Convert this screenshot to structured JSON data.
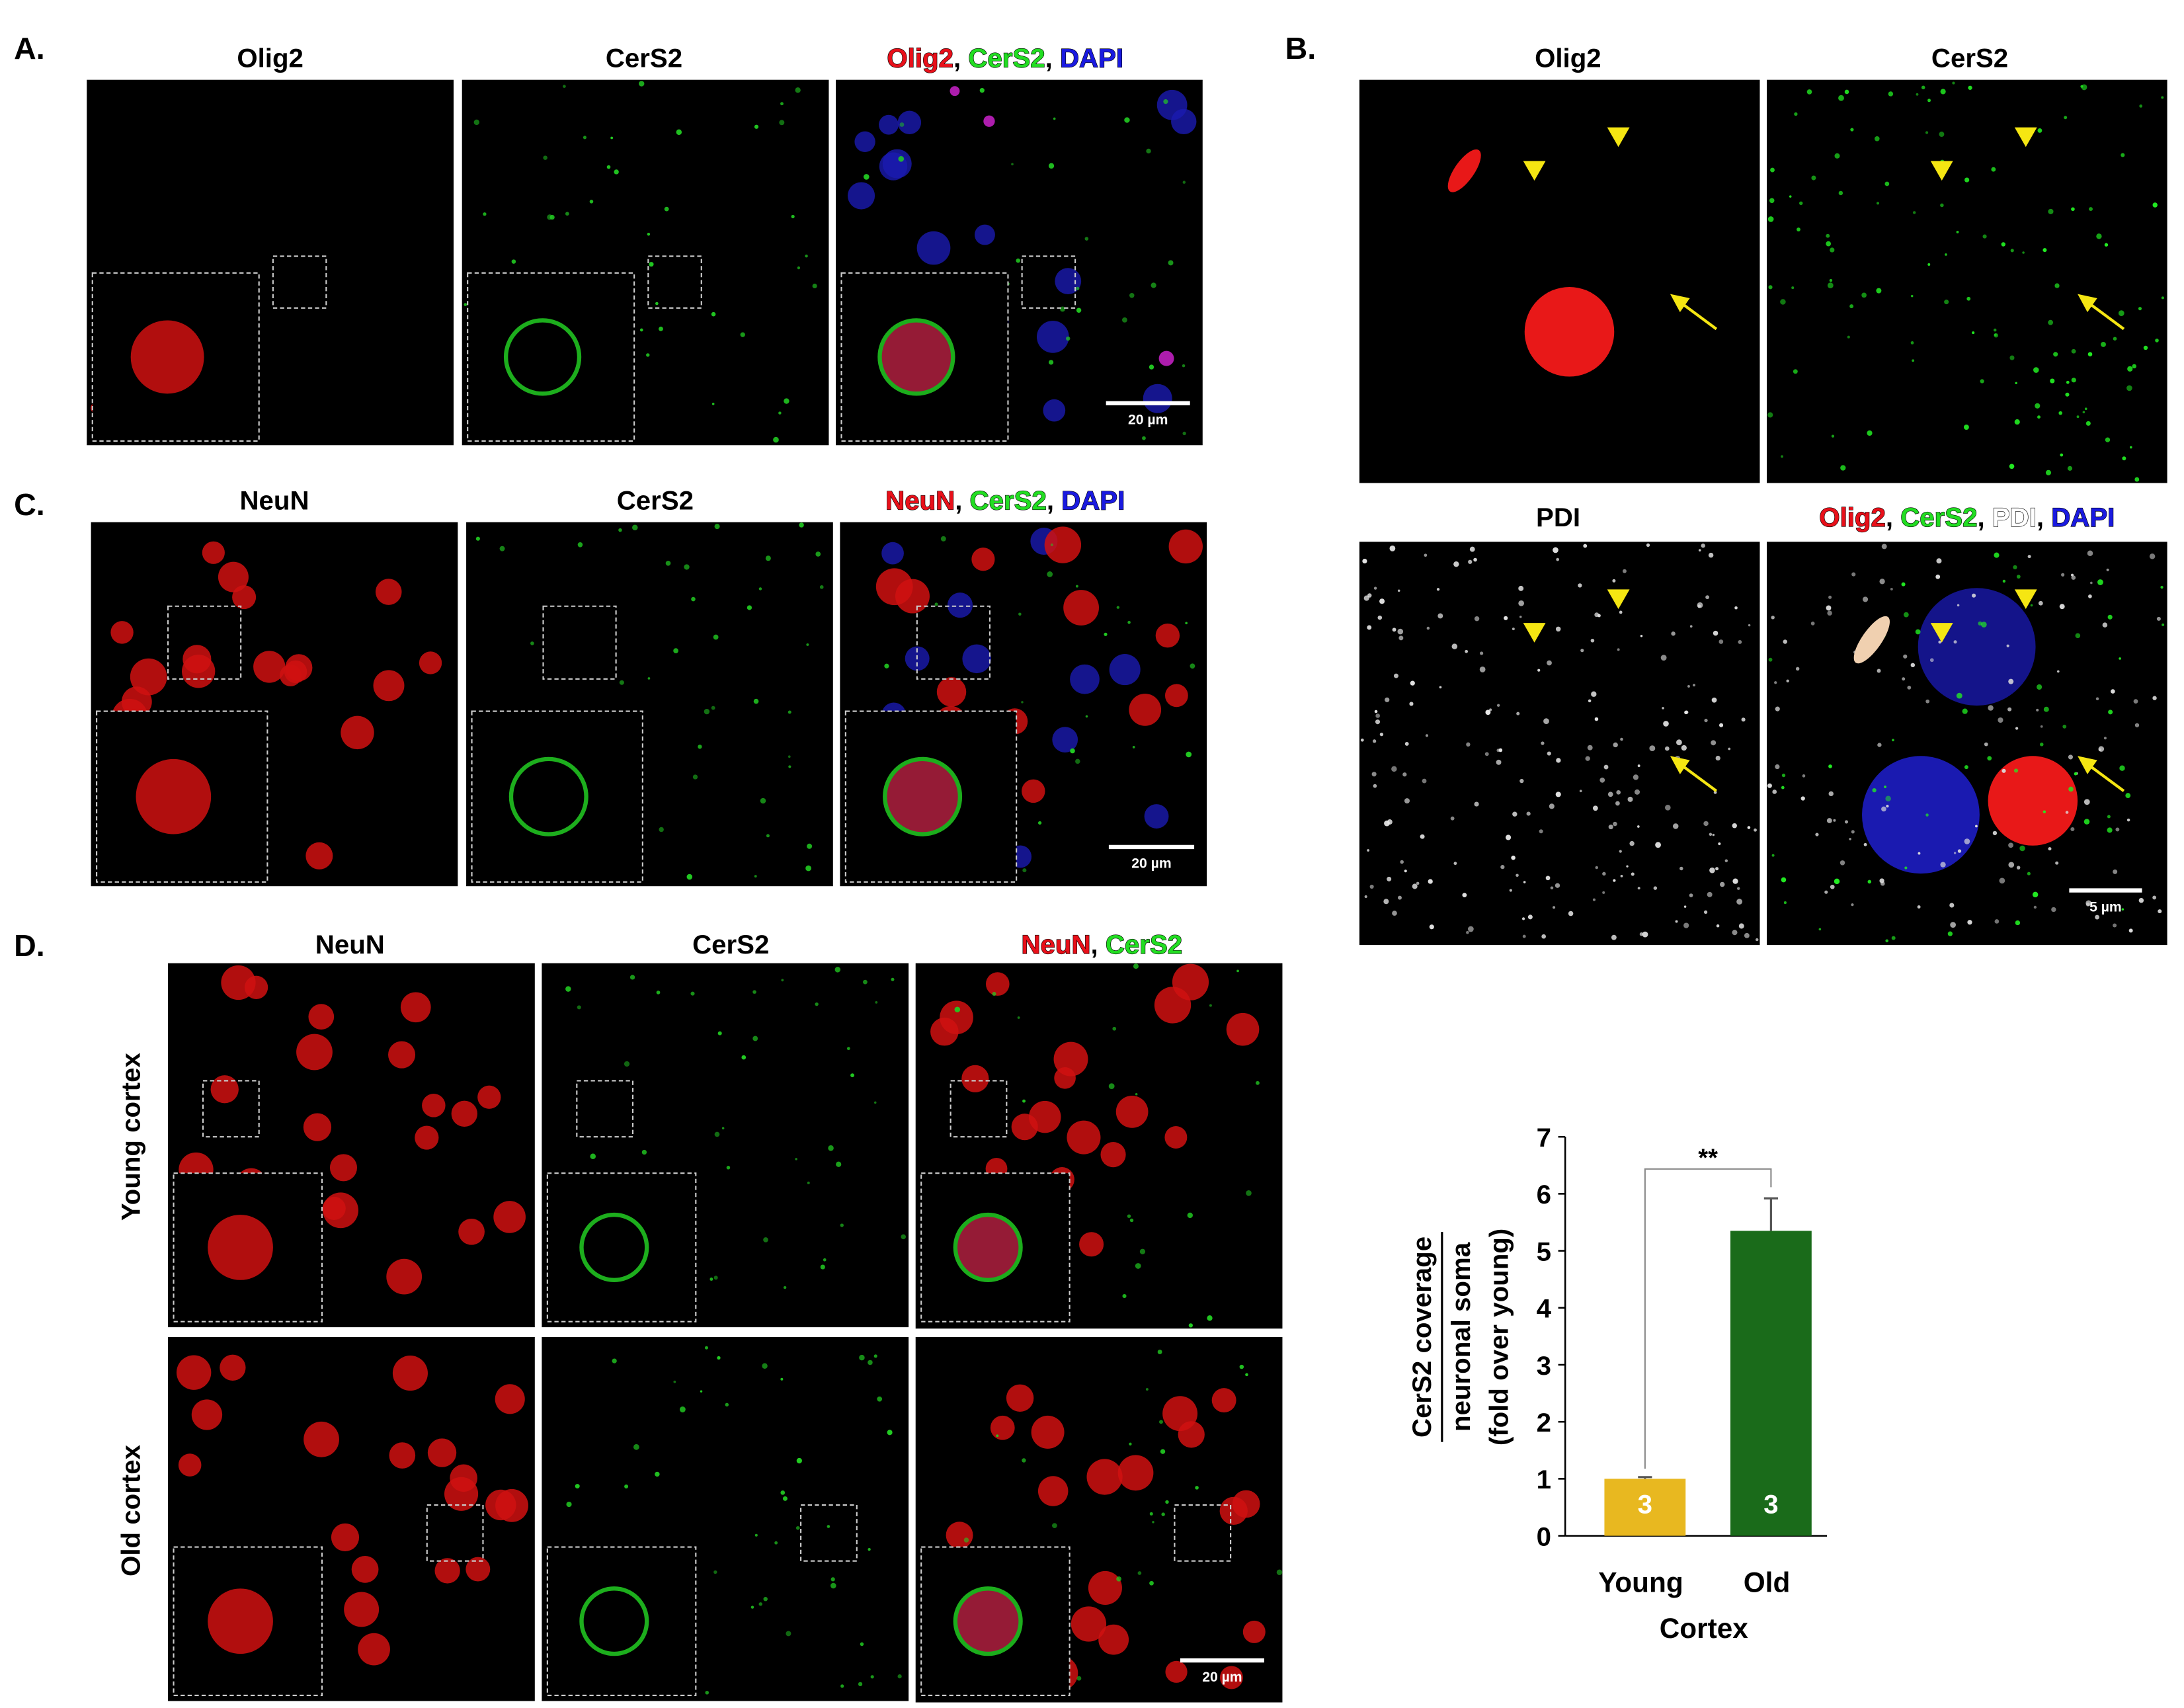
{
  "panels": {
    "A": {
      "letter": "A.",
      "titles": [
        [
          {
            "text": "Olig2",
            "color": "#000000"
          }
        ],
        [
          {
            "text": "CerS2",
            "color": "#000000"
          }
        ],
        [
          {
            "text": "Olig2",
            "color": "#e8101a"
          },
          {
            "text": ", ",
            "color": "#000000"
          },
          {
            "text": "CerS2",
            "color": "#22dd22"
          },
          {
            "text": ", ",
            "color": "#000000"
          },
          {
            "text": "DAPI",
            "color": "#1a1ae0"
          }
        ]
      ],
      "scale_bar": "20 µm"
    },
    "B": {
      "letter": "B.",
      "titles": [
        [
          {
            "text": "Olig2",
            "color": "#000000"
          }
        ],
        [
          {
            "text": "CerS2",
            "color": "#000000"
          }
        ],
        [
          {
            "text": "PDI",
            "color": "#000000"
          }
        ],
        [
          {
            "text": "Olig2",
            "color": "#e8101a"
          },
          {
            "text": ", ",
            "color": "#000000"
          },
          {
            "text": "CerS2",
            "color": "#22dd22"
          },
          {
            "text": ", ",
            "color": "#000000"
          },
          {
            "text": "PDI",
            "color": "#ffffff"
          },
          {
            "text": ", ",
            "color": "#000000"
          },
          {
            "text": "DAPI",
            "color": "#1a1ae0"
          }
        ]
      ],
      "scale_bar": "5 µm"
    },
    "C": {
      "letter": "C.",
      "titles": [
        [
          {
            "text": "NeuN",
            "color": "#000000"
          }
        ],
        [
          {
            "text": "CerS2",
            "color": "#000000"
          }
        ],
        [
          {
            "text": "NeuN",
            "color": "#e8101a"
          },
          {
            "text": ", ",
            "color": "#000000"
          },
          {
            "text": "CerS2",
            "color": "#22dd22"
          },
          {
            "text": ", ",
            "color": "#000000"
          },
          {
            "text": "DAPI",
            "color": "#1a1ae0"
          }
        ]
      ],
      "scale_bar": "20 µm"
    },
    "D": {
      "letter": "D.",
      "titles": [
        [
          {
            "text": "NeuN",
            "color": "#000000"
          }
        ],
        [
          {
            "text": "CerS2",
            "color": "#000000"
          }
        ],
        [
          {
            "text": "NeuN",
            "color": "#e8101a"
          },
          {
            "text": ", ",
            "color": "#000000"
          },
          {
            "text": "CerS2",
            "color": "#22dd22"
          }
        ]
      ],
      "row_labels": [
        "Young cortex",
        "Old cortex"
      ],
      "scale_bar": "20 µm"
    }
  },
  "chart_data": {
    "type": "bar",
    "y_label": [
      "CerS2 coverage",
      "neuronal soma",
      "(fold over young)"
    ],
    "x_label": "Cortex",
    "categories": [
      "Young",
      "Old"
    ],
    "values": [
      1.0,
      5.35
    ],
    "errors": [
      0.03,
      0.57
    ],
    "colors": [
      "#e8b820",
      "#1a6b1a"
    ],
    "n_labels": [
      "3",
      "3"
    ],
    "significance": "**",
    "ylim": [
      0,
      7
    ],
    "yticks": [
      0,
      1,
      2,
      3,
      4,
      5,
      6,
      7
    ]
  }
}
